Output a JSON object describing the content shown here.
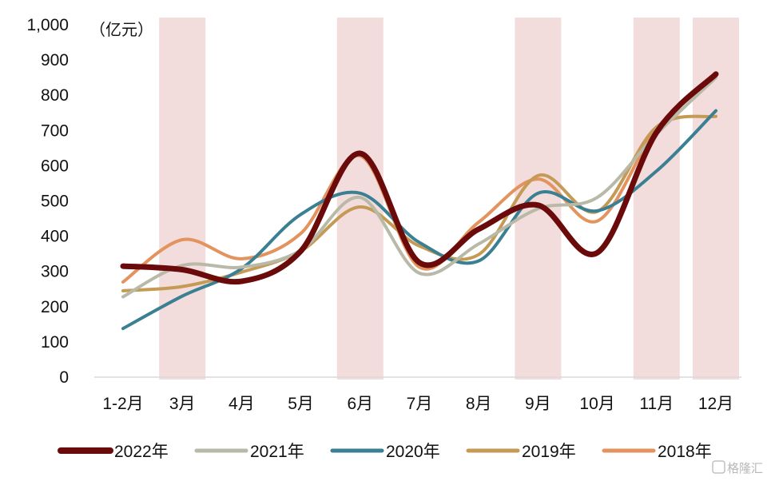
{
  "chart_data": {
    "type": "line",
    "unit_label": "（亿元）",
    "categories": [
      "1-2月",
      "3月",
      "4月",
      "5月",
      "6月",
      "7月",
      "8月",
      "9月",
      "10月",
      "11月",
      "12月"
    ],
    "ylim": [
      0,
      1000
    ],
    "yticks": [
      "0",
      "100",
      "200",
      "300",
      "400",
      "500",
      "600",
      "700",
      "800",
      "900",
      "1,000"
    ],
    "shaded_categories": [
      "3月",
      "6月",
      "9月",
      "11月",
      "12月"
    ],
    "shade_color": "#f2dcdc",
    "series": [
      {
        "name": "2022年",
        "color": "#6b0a0a",
        "width": 7,
        "values": [
          315,
          305,
          272,
          358,
          635,
          325,
          420,
          488,
          353,
          695,
          860
        ]
      },
      {
        "name": "2021年",
        "color": "#b9b9a7",
        "width": 4,
        "values": [
          228,
          317,
          312,
          360,
          510,
          295,
          378,
          478,
          510,
          690,
          850
        ]
      },
      {
        "name": "2020年",
        "color": "#3b7f93",
        "width": 4,
        "values": [
          138,
          230,
          308,
          462,
          522,
          382,
          330,
          522,
          472,
          585,
          756
        ]
      },
      {
        "name": "2019年",
        "color": "#c49a55",
        "width": 4,
        "values": [
          245,
          257,
          298,
          358,
          483,
          372,
          348,
          572,
          470,
          710,
          740
        ]
      },
      {
        "name": "2018年",
        "color": "#e3935e",
        "width": 4,
        "values": [
          270,
          390,
          336,
          408,
          628,
          312,
          440,
          562,
          443,
          705,
          860
        ]
      }
    ],
    "grid": false,
    "legend": "bottom"
  },
  "watermark": "格隆汇"
}
